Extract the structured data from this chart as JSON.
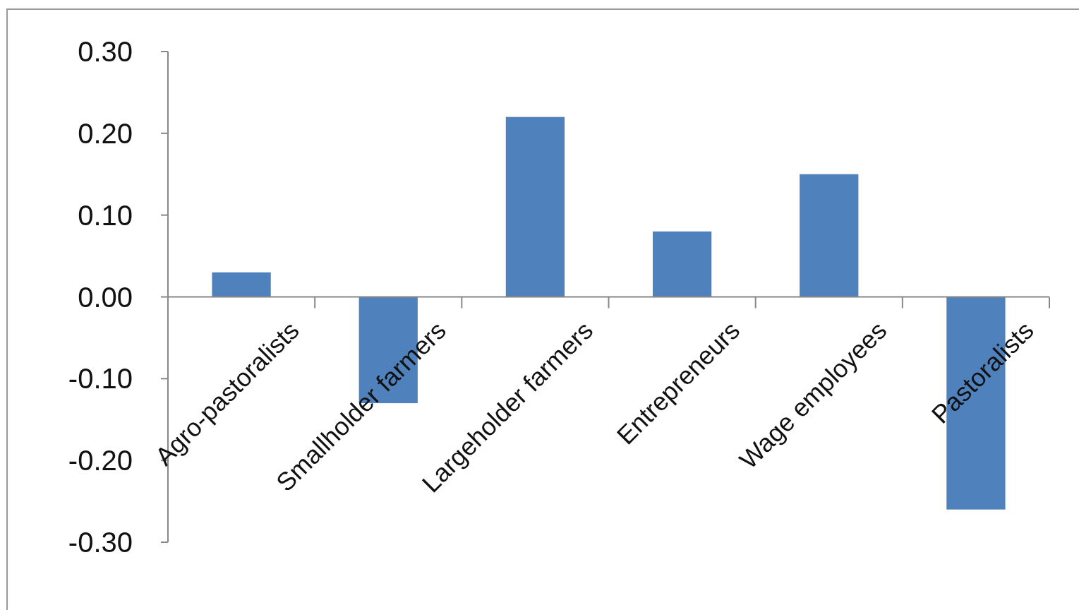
{
  "chart_data": {
    "type": "bar",
    "categories": [
      "Agro-pastoralists",
      "Smallholder farmers",
      "Largeholder farmers",
      "Entrepreneurs",
      "Wage employees",
      "Pastoralists"
    ],
    "values": [
      0.03,
      -0.13,
      0.22,
      0.08,
      0.15,
      -0.26
    ],
    "color": "#4f81bd",
    "ylim": [
      -0.3,
      0.3
    ],
    "yticks": [
      {
        "value": -0.3,
        "label": "-0.30"
      },
      {
        "value": -0.2,
        "label": "-0.20"
      },
      {
        "value": -0.1,
        "label": "-0.10"
      },
      {
        "value": 0,
        "label": "0.00"
      },
      {
        "value": 0.1,
        "label": "0.10"
      },
      {
        "value": 0.2,
        "label": "0.20"
      },
      {
        "value": 0.3,
        "label": "0.30"
      }
    ],
    "grid": false
  }
}
